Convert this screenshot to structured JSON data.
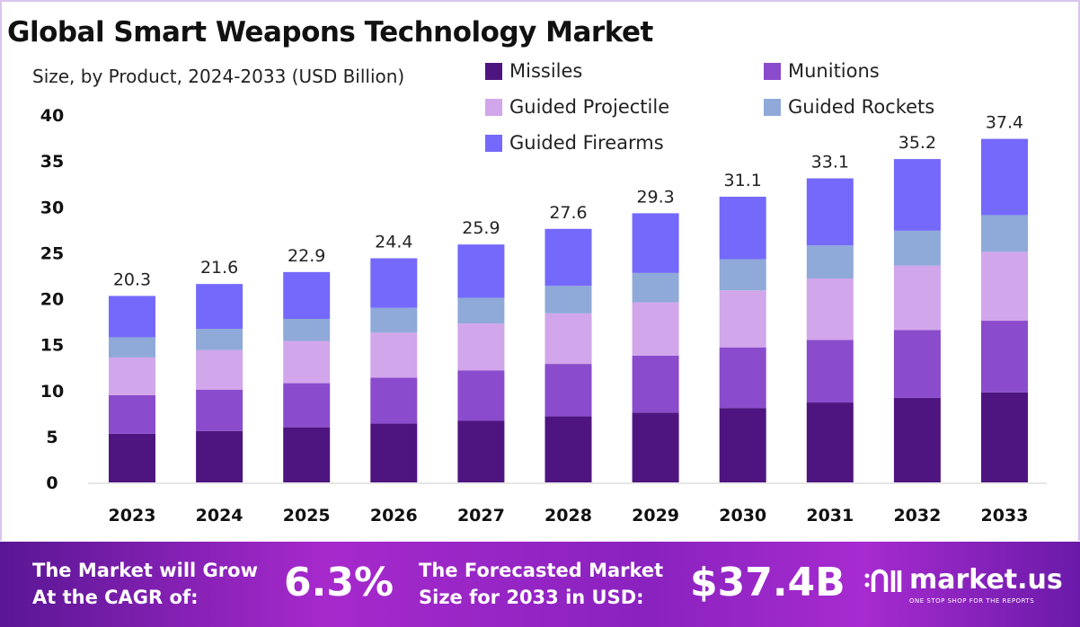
{
  "chart_data": {
    "type": "bar",
    "stacked": true,
    "title": "Global Smart Weapons Technology Market",
    "subtitle": "Size, by Product, 2024-2033 (USD Billion)",
    "xlabel": "",
    "ylabel": "",
    "ylim": [
      0,
      40
    ],
    "yticks": [
      0,
      5,
      10,
      15,
      20,
      25,
      30,
      35,
      40
    ],
    "grid": false,
    "legend_placement": "top-right",
    "categories": [
      "2023",
      "2024",
      "2025",
      "2026",
      "2027",
      "2028",
      "2029",
      "2030",
      "2031",
      "2032",
      "2033"
    ],
    "totals": [
      20.3,
      21.6,
      22.9,
      24.4,
      25.9,
      27.6,
      29.3,
      31.1,
      33.1,
      35.2,
      37.4
    ],
    "series": [
      {
        "name": "Missiles",
        "color": "#4e1580",
        "values": [
          5.3,
          5.6,
          6.0,
          6.4,
          6.7,
          7.2,
          7.6,
          8.1,
          8.7,
          9.2,
          9.8
        ]
      },
      {
        "name": "Munitions",
        "color": "#8a4ccc",
        "values": [
          4.2,
          4.5,
          4.8,
          5.0,
          5.5,
          5.7,
          6.2,
          6.6,
          6.8,
          7.4,
          7.8
        ]
      },
      {
        "name": "Guided Projectile",
        "color": "#d2a6ea",
        "values": [
          4.1,
          4.3,
          4.6,
          4.9,
          5.1,
          5.5,
          5.8,
          6.2,
          6.7,
          7.0,
          7.5
        ]
      },
      {
        "name": "Guided Rockets",
        "color": "#8fa9d9",
        "values": [
          2.2,
          2.3,
          2.4,
          2.7,
          2.8,
          3.0,
          3.2,
          3.4,
          3.6,
          3.8,
          4.0
        ]
      },
      {
        "name": "Guided Firearms",
        "color": "#7469fb",
        "values": [
          4.5,
          4.9,
          5.1,
          5.4,
          5.8,
          6.2,
          6.5,
          6.8,
          7.3,
          7.8,
          8.3
        ]
      }
    ]
  },
  "banner": {
    "cagr_label_1": "The Market will Grow",
    "cagr_label_2": "At the CAGR of:",
    "cagr_value": "6.3%",
    "forecast_label_1": "The Forecasted Market",
    "forecast_label_2": "Size for 2033 in USD:",
    "forecast_value": "$37.4B",
    "logo_name": "market.us",
    "logo_tagline": "ONE STOP SHOP FOR THE REPORTS"
  }
}
